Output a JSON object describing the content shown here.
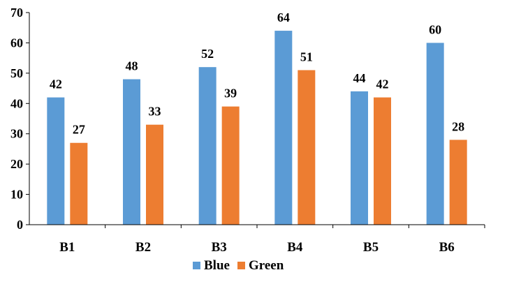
{
  "chart_data": {
    "type": "bar",
    "categories": [
      "B1",
      "B2",
      "B3",
      "B4",
      "B5",
      "B6"
    ],
    "series": [
      {
        "name": "Blue",
        "color": "#5b9bd5",
        "values": [
          42,
          48,
          52,
          64,
          44,
          60
        ]
      },
      {
        "name": "Green",
        "color": "#ed7d31",
        "values": [
          27,
          33,
          39,
          51,
          42,
          28
        ]
      }
    ],
    "title": "",
    "xlabel": "",
    "ylabel": "",
    "ylim": [
      0,
      70
    ],
    "yticks": [
      0,
      10,
      20,
      30,
      40,
      50,
      60,
      70
    ],
    "grid": false,
    "legend": "bottom",
    "data_labels": true
  }
}
